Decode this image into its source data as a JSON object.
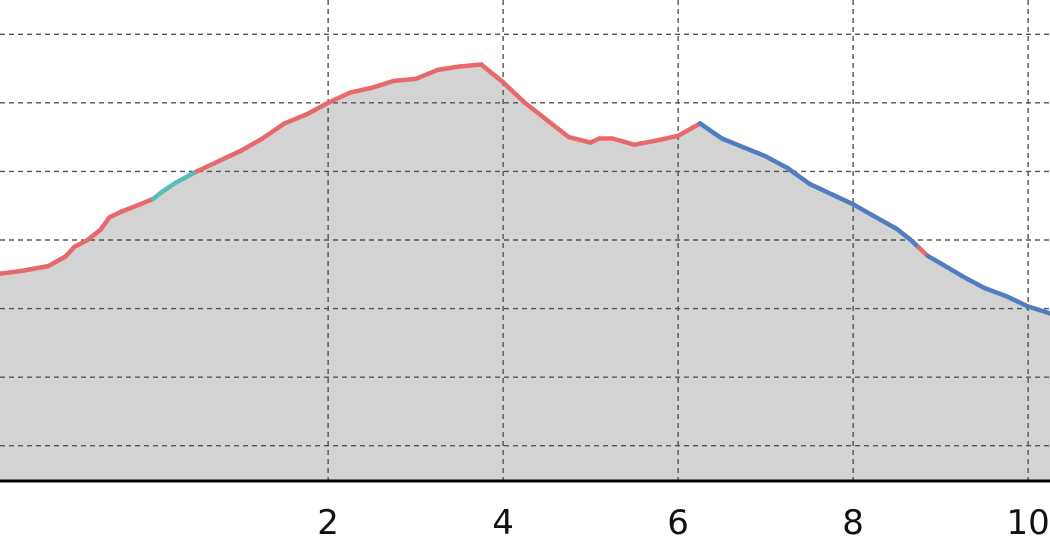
{
  "chart_data": {
    "type": "area",
    "title": "",
    "xlabel": "",
    "ylabel": "",
    "xlim": [
      -1.75,
      10.25
    ],
    "ylim": [
      0,
      70
    ],
    "grid": true,
    "xticks": [
      2,
      4,
      6,
      8,
      10
    ],
    "xtick_labels": [
      "2",
      "4",
      "6",
      "8",
      "10"
    ],
    "yticks": [
      5,
      15,
      25,
      35,
      45,
      55,
      65
    ],
    "fill_color": "#d3d3d3",
    "axis_color": "#000000",
    "grid_color": "#555555",
    "x": [
      -1.75,
      -1.5,
      -1.2,
      -1.0,
      -0.9,
      -0.75,
      -0.6,
      -0.5,
      -0.35,
      -0.15,
      0.0,
      0.1,
      0.25,
      0.5,
      0.75,
      1.0,
      1.25,
      1.5,
      1.75,
      2.0,
      2.25,
      2.5,
      2.75,
      3.0,
      3.25,
      3.5,
      3.75,
      4.0,
      4.25,
      4.5,
      4.75,
      5.0,
      5.1,
      5.25,
      5.5,
      5.75,
      6.0,
      6.25,
      6.5,
      6.75,
      7.0,
      7.25,
      7.5,
      7.75,
      8.0,
      8.25,
      8.5,
      8.65,
      8.75,
      8.85,
      9.0,
      9.25,
      9.5,
      9.75,
      10.0,
      10.25
    ],
    "y": [
      30.1,
      30.5,
      31.2,
      32.6,
      34.0,
      35.0,
      36.5,
      38.3,
      39.2,
      40.2,
      41.0,
      42.0,
      43.3,
      45.0,
      46.5,
      48.0,
      49.8,
      52.0,
      53.3,
      55.0,
      56.5,
      57.2,
      58.2,
      58.5,
      59.8,
      60.3,
      60.6,
      58.0,
      55.0,
      52.5,
      50.0,
      49.2,
      49.8,
      49.8,
      48.9,
      49.5,
      50.2,
      52.0,
      49.8,
      48.5,
      47.2,
      45.5,
      43.2,
      41.7,
      40.2,
      38.4,
      36.6,
      35.1,
      33.9,
      32.7,
      31.6,
      29.7,
      28.0,
      26.8,
      25.3,
      24.3
    ],
    "segment_colors": [
      "#e8696b",
      "#e8696b",
      "#e8696b",
      "#e8696b",
      "#e8696b",
      "#e8696b",
      "#e8696b",
      "#e8696b",
      "#e8696b",
      "#e8696b",
      "#5bbcbc",
      "#5bbcbc",
      "#5bbcbc",
      "#e8696b",
      "#e8696b",
      "#e8696b",
      "#e8696b",
      "#e8696b",
      "#e8696b",
      "#e8696b",
      "#e8696b",
      "#e8696b",
      "#e8696b",
      "#e8696b",
      "#e8696b",
      "#e8696b",
      "#e8696b",
      "#e8696b",
      "#e8696b",
      "#e8696b",
      "#e8696b",
      "#e8696b",
      "#e8696b",
      "#e8696b",
      "#e8696b",
      "#e8696b",
      "#e8696b",
      "#4f7dc0",
      "#4f7dc0",
      "#4f7dc0",
      "#4f7dc0",
      "#4f7dc0",
      "#4f7dc0",
      "#4f7dc0",
      "#4f7dc0",
      "#4f7dc0",
      "#4f7dc0",
      "#4f7dc0",
      "#e8696b",
      "#4f7dc0",
      "#4f7dc0",
      "#4f7dc0",
      "#4f7dc0",
      "#4f7dc0",
      "#4f7dc0"
    ]
  }
}
